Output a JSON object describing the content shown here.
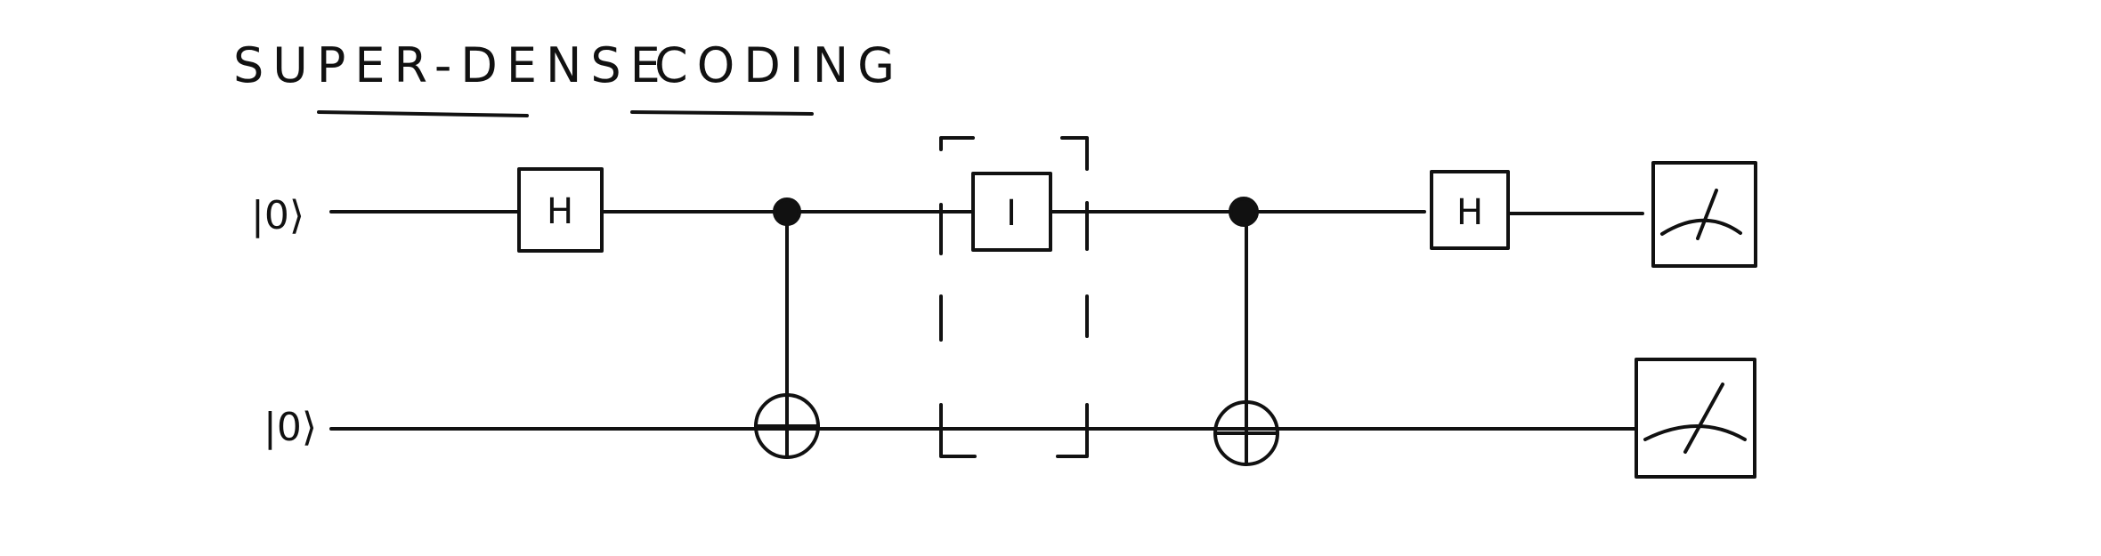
{
  "title": {
    "part1": "SUPER-DENSE",
    "part2": "CODING"
  },
  "qubits": [
    {
      "label": "|0⟩"
    },
    {
      "label": "|0⟩"
    }
  ],
  "gates": {
    "h_first": "H",
    "identity": "I",
    "h_second": "H"
  },
  "colors": {
    "ink": "#111111",
    "background": "#ffffff"
  },
  "icons": {
    "control": "filled-dot",
    "target": "circle-plus",
    "measurement": "meter-icon"
  }
}
